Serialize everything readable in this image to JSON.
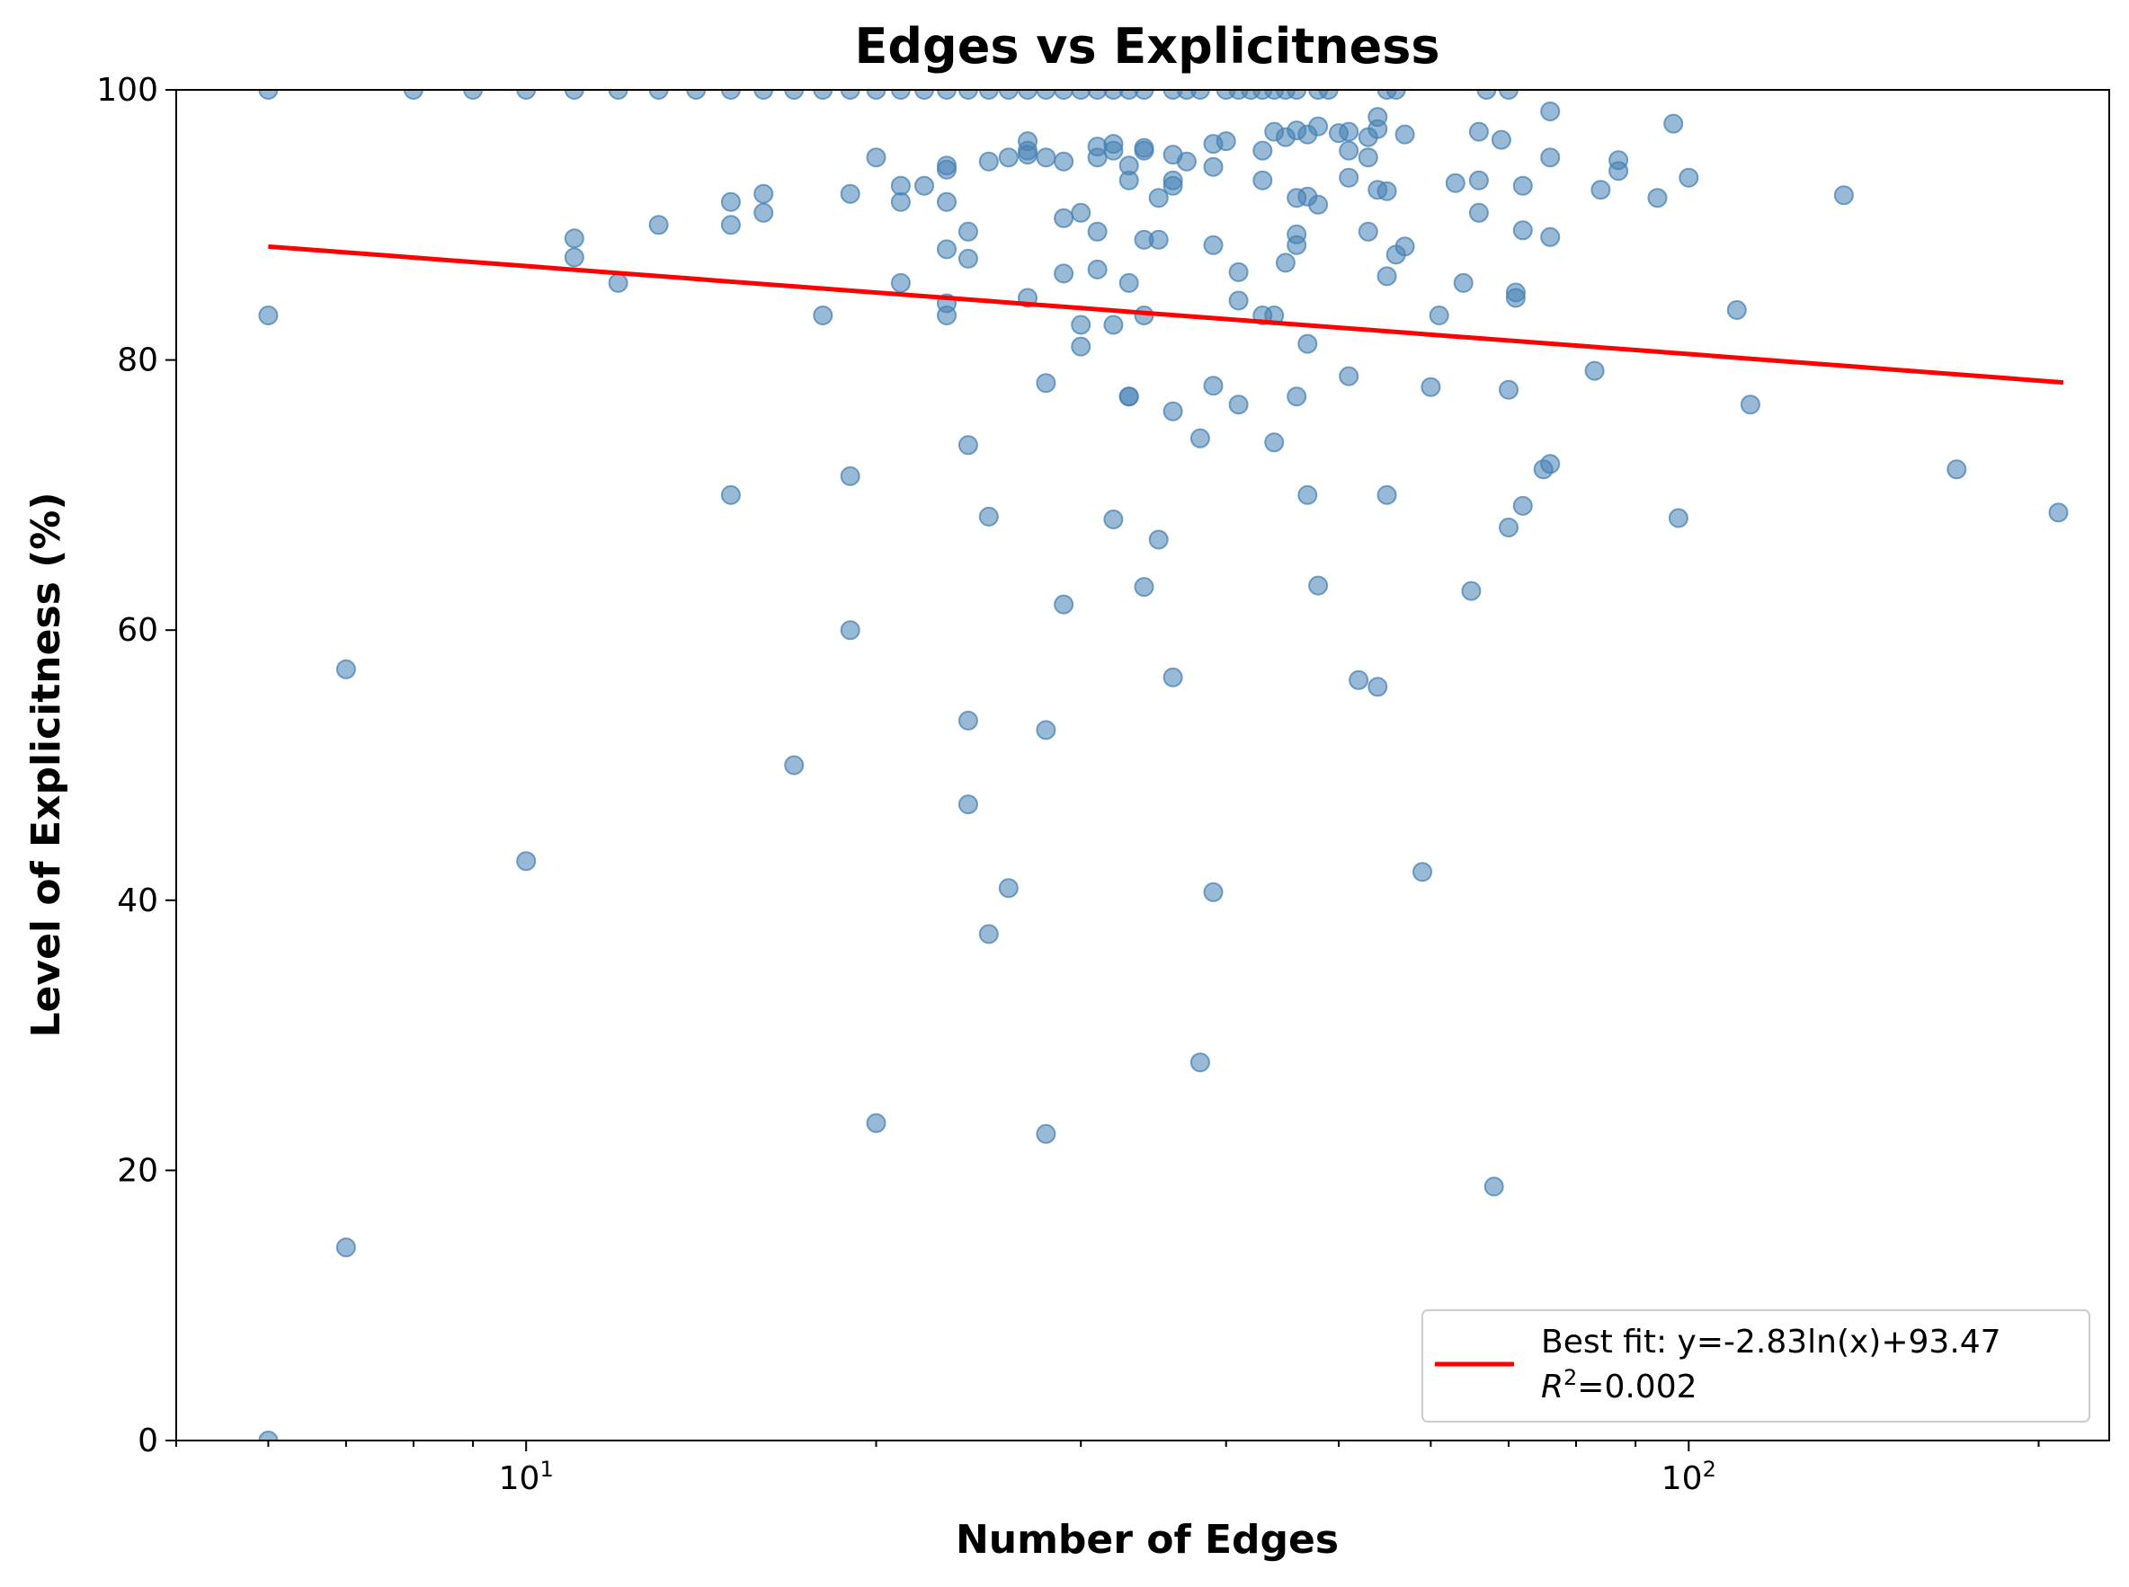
{
  "chart_data": {
    "type": "scatter",
    "title": "Edges vs Explicitness",
    "xlabel": "Number of Edges",
    "ylabel": "Level of Explicitness (%)",
    "x_scale": "log",
    "xlim": [
      5,
      230
    ],
    "ylim": [
      0,
      100
    ],
    "x_ticks": [
      {
        "value": 10,
        "base": "10",
        "exp": "1"
      },
      {
        "value": 100,
        "base": "10",
        "exp": "2"
      }
    ],
    "y_ticks": [
      0,
      20,
      40,
      60,
      80,
      100
    ],
    "grid": false,
    "legend": {
      "placement": "lower-right",
      "line1": "Best fit: y=-2.83ln(x)+93.47",
      "r2_symbol": "R",
      "r2_sup": "2",
      "r2_value": "=0.002"
    },
    "colors": {
      "points": "#4682b4",
      "fit": "#ff0000"
    },
    "fit": {
      "a": -2.83,
      "b": 93.47,
      "x_range": [
        6,
        210
      ]
    },
    "points": [
      [
        6,
        100
      ],
      [
        8,
        100
      ],
      [
        9,
        100
      ],
      [
        10,
        100
      ],
      [
        11,
        100
      ],
      [
        12,
        100
      ],
      [
        13,
        100
      ],
      [
        14,
        100
      ],
      [
        15,
        100
      ],
      [
        16,
        100
      ],
      [
        17,
        100
      ],
      [
        18,
        100
      ],
      [
        19,
        100
      ],
      [
        20,
        100
      ],
      [
        21,
        100
      ],
      [
        22,
        100
      ],
      [
        23,
        100
      ],
      [
        24,
        100
      ],
      [
        25,
        100
      ],
      [
        26,
        100
      ],
      [
        27,
        100
      ],
      [
        28,
        100
      ],
      [
        29,
        100
      ],
      [
        30,
        100
      ],
      [
        31,
        100
      ],
      [
        32,
        100
      ],
      [
        33,
        100
      ],
      [
        34,
        100
      ],
      [
        36,
        100
      ],
      [
        37,
        100
      ],
      [
        38,
        100
      ],
      [
        40,
        100
      ],
      [
        41,
        100
      ],
      [
        42,
        100
      ],
      [
        43,
        100
      ],
      [
        44,
        100
      ],
      [
        45,
        100
      ],
      [
        46,
        100
      ],
      [
        48,
        100
      ],
      [
        49,
        100
      ],
      [
        55,
        100
      ],
      [
        56,
        100
      ],
      [
        67,
        100
      ],
      [
        70,
        100
      ],
      [
        6,
        83.3
      ],
      [
        6,
        0
      ],
      [
        7,
        57.1
      ],
      [
        7,
        14.3
      ],
      [
        10,
        42.9
      ],
      [
        11,
        89
      ],
      [
        11,
        87.6
      ],
      [
        12,
        85.7
      ],
      [
        13,
        90
      ],
      [
        15,
        91.7
      ],
      [
        15,
        90
      ],
      [
        15,
        70
      ],
      [
        16,
        92.3
      ],
      [
        16,
        90.9
      ],
      [
        17,
        50
      ],
      [
        18,
        83.3
      ],
      [
        19,
        92.3
      ],
      [
        19,
        71.4
      ],
      [
        19,
        60
      ],
      [
        20,
        95
      ],
      [
        20,
        23.5
      ],
      [
        21,
        92.9
      ],
      [
        21,
        91.7
      ],
      [
        21,
        85.7
      ],
      [
        22,
        92.9
      ],
      [
        23,
        94.4
      ],
      [
        23,
        94.1
      ],
      [
        23,
        91.7
      ],
      [
        23,
        88.2
      ],
      [
        23,
        84.2
      ],
      [
        23,
        83.3
      ],
      [
        24,
        89.5
      ],
      [
        24,
        87.5
      ],
      [
        24,
        73.7
      ],
      [
        24,
        53.3
      ],
      [
        24,
        47.1
      ],
      [
        25,
        94.7
      ],
      [
        25,
        68.4
      ],
      [
        25,
        37.5
      ],
      [
        26,
        95
      ],
      [
        26,
        40.9
      ],
      [
        27,
        96.2
      ],
      [
        27,
        95.5
      ],
      [
        27,
        95.2
      ],
      [
        27,
        84.6
      ],
      [
        28,
        95
      ],
      [
        28,
        78.3
      ],
      [
        28,
        52.6
      ],
      [
        28,
        22.7
      ],
      [
        29,
        94.7
      ],
      [
        29,
        90.5
      ],
      [
        29,
        86.4
      ],
      [
        29,
        61.9
      ],
      [
        30,
        90.9
      ],
      [
        30,
        82.6
      ],
      [
        30,
        81
      ],
      [
        31,
        95.8
      ],
      [
        31,
        95
      ],
      [
        31,
        89.5
      ],
      [
        31,
        86.7
      ],
      [
        32,
        96
      ],
      [
        32,
        95.5
      ],
      [
        32,
        82.6
      ],
      [
        32,
        68.2
      ],
      [
        33,
        94.4
      ],
      [
        33,
        93.3
      ],
      [
        33,
        85.7
      ],
      [
        33,
        77.3
      ],
      [
        33,
        77.3
      ],
      [
        34,
        95.7
      ],
      [
        34,
        95.5
      ],
      [
        34,
        88.9
      ],
      [
        34,
        83.3
      ],
      [
        34,
        63.2
      ],
      [
        35,
        92
      ],
      [
        35,
        88.9
      ],
      [
        35,
        66.7
      ],
      [
        36,
        95.2
      ],
      [
        36,
        93.3
      ],
      [
        36,
        92.9
      ],
      [
        36,
        76.2
      ],
      [
        36,
        56.5
      ],
      [
        37,
        94.7
      ],
      [
        38,
        74.2
      ],
      [
        38,
        28
      ],
      [
        39,
        96
      ],
      [
        39,
        94.3
      ],
      [
        39,
        88.5
      ],
      [
        39,
        78.1
      ],
      [
        39,
        40.6
      ],
      [
        40,
        96.2
      ],
      [
        41,
        86.5
      ],
      [
        41,
        84.4
      ],
      [
        41,
        76.7
      ],
      [
        43,
        95.5
      ],
      [
        43,
        93.3
      ],
      [
        43,
        83.3
      ],
      [
        44,
        96.9
      ],
      [
        44,
        83.3
      ],
      [
        44,
        73.9
      ],
      [
        45,
        96.5
      ],
      [
        45,
        87.2
      ],
      [
        46,
        97
      ],
      [
        46,
        92
      ],
      [
        46,
        89.3
      ],
      [
        46,
        88.5
      ],
      [
        46,
        77.3
      ],
      [
        47,
        96.7
      ],
      [
        47,
        92.1
      ],
      [
        47,
        81.2
      ],
      [
        47,
        70
      ],
      [
        48,
        97.3
      ],
      [
        48,
        91.5
      ],
      [
        48,
        63.3
      ],
      [
        50,
        96.8
      ],
      [
        51,
        96.9
      ],
      [
        51,
        95.5
      ],
      [
        51,
        93.5
      ],
      [
        51,
        78.8
      ],
      [
        52,
        56.3
      ],
      [
        53,
        96.5
      ],
      [
        53,
        95
      ],
      [
        53,
        89.5
      ],
      [
        54,
        98
      ],
      [
        54,
        97.1
      ],
      [
        54,
        92.6
      ],
      [
        54,
        55.8
      ],
      [
        55,
        92.5
      ],
      [
        55,
        86.2
      ],
      [
        55,
        70
      ],
      [
        56,
        87.8
      ],
      [
        57,
        96.7
      ],
      [
        57,
        88.4
      ],
      [
        59,
        42.1
      ],
      [
        60,
        78
      ],
      [
        61,
        83.3
      ],
      [
        63,
        93.1
      ],
      [
        64,
        85.7
      ],
      [
        65,
        62.9
      ],
      [
        66,
        96.9
      ],
      [
        66,
        93.3
      ],
      [
        66,
        90.9
      ],
      [
        68,
        18.8
      ],
      [
        69,
        96.3
      ],
      [
        70,
        77.8
      ],
      [
        70,
        67.6
      ],
      [
        71,
        85
      ],
      [
        71,
        84.6
      ],
      [
        72,
        92.9
      ],
      [
        72,
        89.6
      ],
      [
        72,
        69.2
      ],
      [
        75,
        71.9
      ],
      [
        76,
        98.4
      ],
      [
        76,
        95
      ],
      [
        76,
        89.1
      ],
      [
        76,
        72.3
      ],
      [
        83,
        79.2
      ],
      [
        84,
        92.6
      ],
      [
        87,
        94.8
      ],
      [
        87,
        94
      ],
      [
        94,
        92
      ],
      [
        97,
        97.5
      ],
      [
        98,
        68.3
      ],
      [
        100,
        93.5
      ],
      [
        110,
        83.7
      ],
      [
        113,
        76.7
      ],
      [
        136,
        92.2
      ],
      [
        170,
        71.9
      ],
      [
        208,
        68.7
      ]
    ]
  }
}
